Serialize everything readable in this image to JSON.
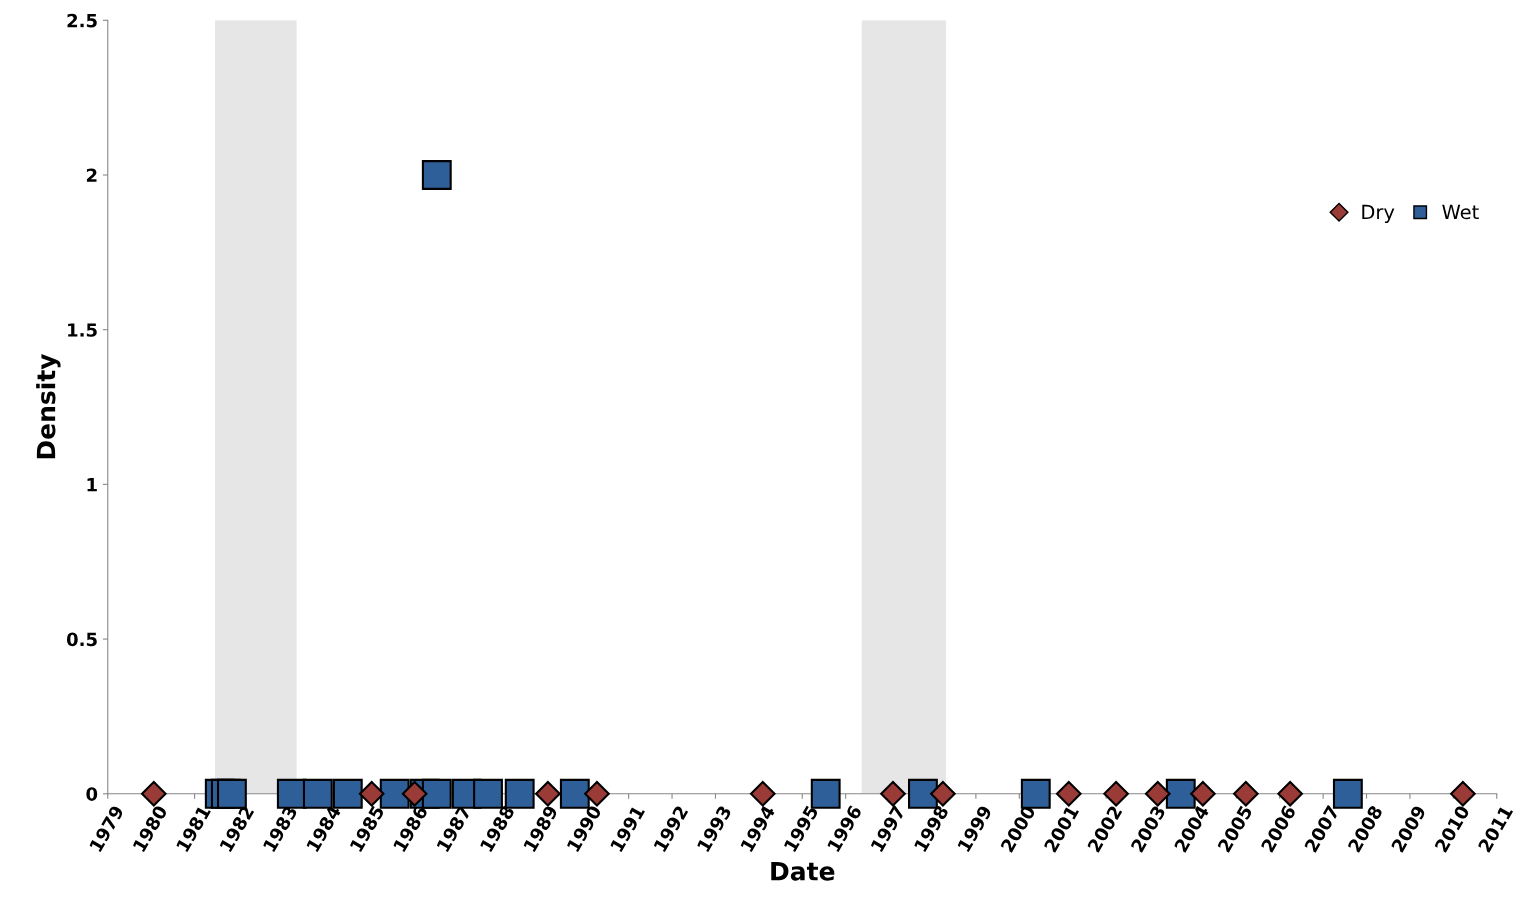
{
  "chart_data": {
    "type": "scatter",
    "xlabel": "Date",
    "ylabel": "Density",
    "xlim": [
      1979,
      2011
    ],
    "xticks": [
      1979,
      1980,
      1981,
      1982,
      1983,
      1984,
      1985,
      1986,
      1987,
      1988,
      1989,
      1990,
      1991,
      1992,
      1993,
      1994,
      1995,
      1996,
      1997,
      1998,
      1999,
      2000,
      2001,
      2002,
      2003,
      2004,
      2005,
      2006,
      2007,
      2008,
      2009,
      2010,
      2011
    ],
    "ylim": [
      0,
      2.5
    ],
    "yticks": [
      0,
      0.5,
      1,
      1.5,
      2,
      2.5
    ],
    "grid": false,
    "legend": "right",
    "bands": [
      {
        "axis": "x",
        "from": 1981.47,
        "to": 1983.35,
        "color": "#e6e6e6"
      },
      {
        "axis": "x",
        "from": 1996.37,
        "to": 1998.31,
        "color": "#e6e6e6"
      }
    ],
    "series": [
      {
        "name": "Dry",
        "color": "#9b3b38",
        "marker": "diamond",
        "x": [
          1980.06,
          1985.08,
          1986.07,
          1989.14,
          1990.27,
          1994.09,
          1997.09,
          1998.24,
          2001.14,
          2002.23,
          2003.19,
          2004.23,
          2005.22,
          2006.24,
          2010.22
        ],
        "values": [
          0,
          0,
          0,
          0,
          0,
          0,
          0,
          0,
          0,
          0,
          0,
          0,
          0,
          0,
          0
        ]
      },
      {
        "name": "Wet",
        "color": "#2f5f98",
        "marker": "square",
        "x": [
          1981.58,
          1981.72,
          1981.86,
          1983.24,
          1983.84,
          1984.53,
          1985.61,
          1986.3,
          1986.58,
          1986.58,
          1987.27,
          1987.76,
          1988.49,
          1989.76,
          1995.54,
          1997.78,
          2000.38,
          2003.72,
          2007.57
        ],
        "values": [
          0,
          0,
          0,
          0,
          0,
          0,
          0,
          0,
          0,
          2,
          0,
          0,
          0,
          0,
          0,
          0,
          0,
          0,
          0
        ]
      }
    ]
  }
}
